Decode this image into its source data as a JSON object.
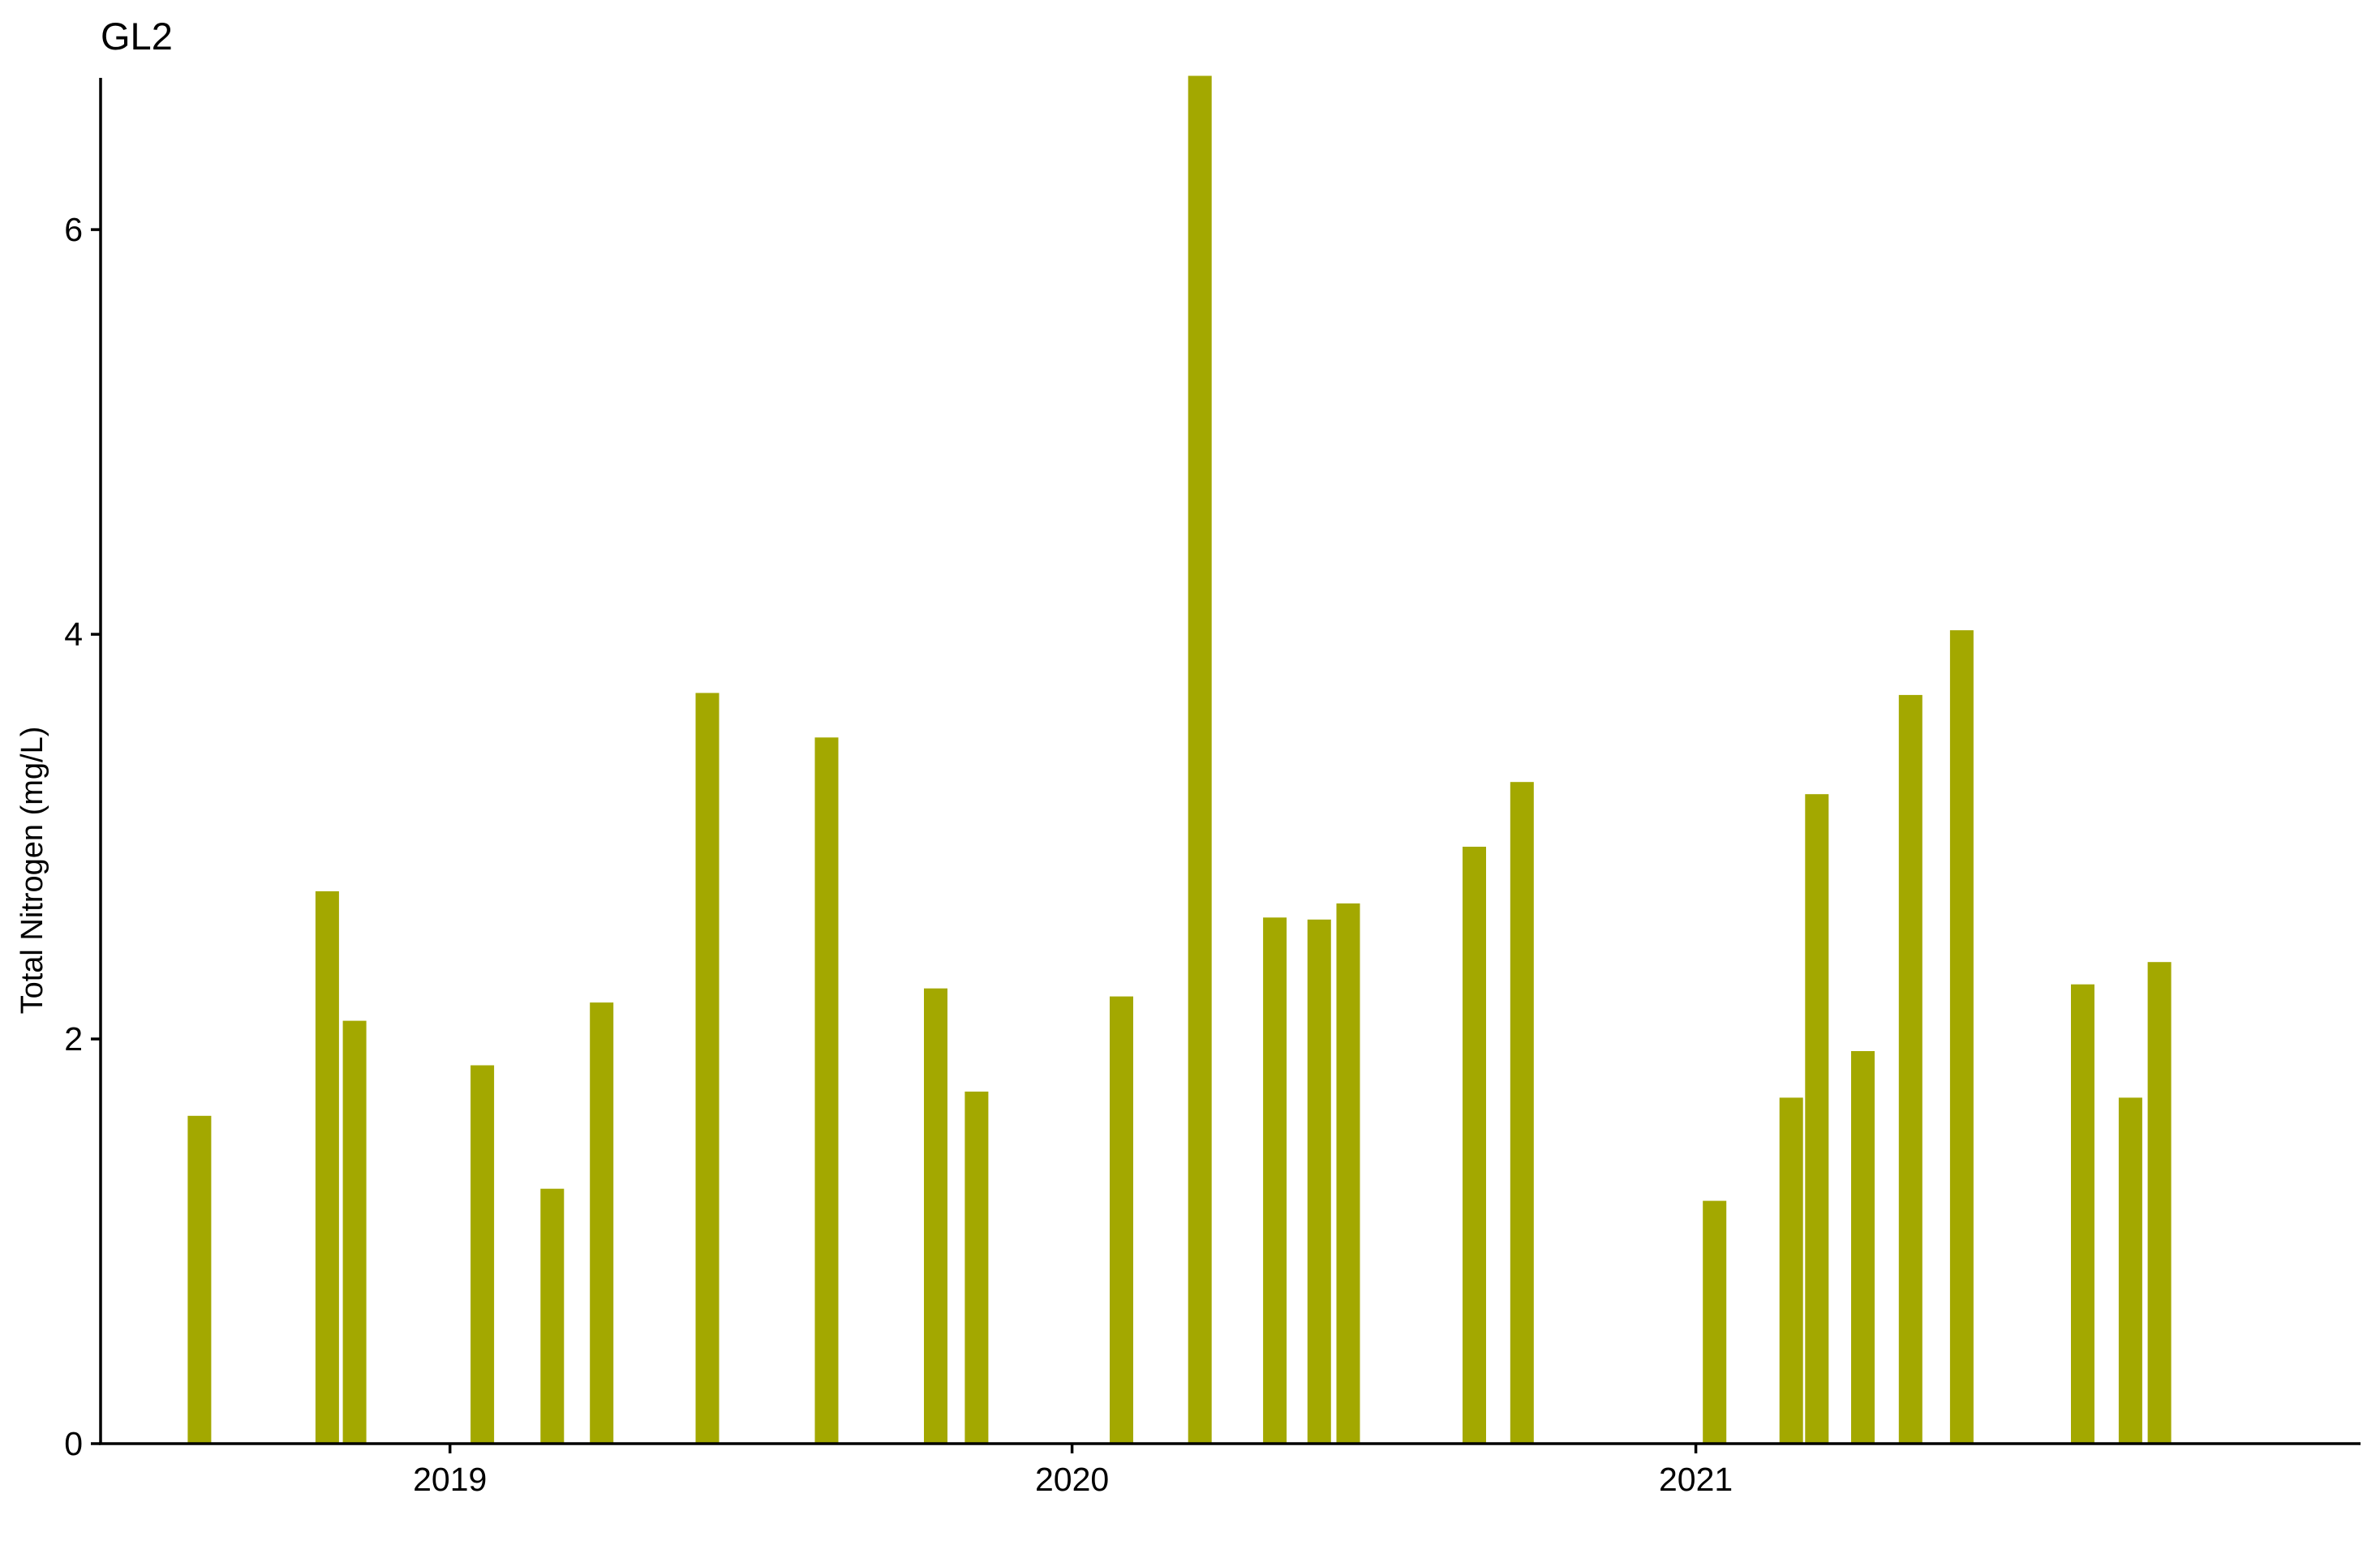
{
  "chart_data": {
    "type": "bar",
    "title": "GL2",
    "xlabel": "",
    "ylabel": "Total Nitrogen (mg/L)",
    "ylim": [
      0,
      6.75
    ],
    "y_ticks": [
      0,
      2,
      4,
      6
    ],
    "x_axis": {
      "type": "date",
      "range": [
        "2018-06-10",
        "2022-01-26"
      ],
      "ticks": [
        {
          "date": "2019-01-01",
          "label": "2019"
        },
        {
          "date": "2020-01-01",
          "label": "2020"
        },
        {
          "date": "2021-01-01",
          "label": "2021"
        }
      ]
    },
    "bar_color": "#A3A800",
    "grid": false,
    "legend": "none",
    "series": [
      {
        "x": [
          "2018-08-07",
          "2018-10-21",
          "2018-11-06",
          "2019-01-20",
          "2019-03-02",
          "2019-03-31",
          "2019-06-01",
          "2019-08-10",
          "2019-10-13",
          "2019-11-06",
          "2020-01-30",
          "2020-03-16",
          "2020-04-29",
          "2020-05-25",
          "2020-06-11",
          "2020-08-24",
          "2020-09-21",
          "2021-01-12",
          "2021-02-26",
          "2021-03-13",
          "2021-04-09",
          "2021-05-07",
          "2021-06-06",
          "2021-08-16",
          "2021-09-13",
          "2021-09-30"
        ],
        "values": [
          1.62,
          2.73,
          2.09,
          1.87,
          1.26,
          2.18,
          3.71,
          3.49,
          2.25,
          1.74,
          2.21,
          6.76,
          2.6,
          2.59,
          2.67,
          2.95,
          3.27,
          1.2,
          1.71,
          3.21,
          1.94,
          3.7,
          4.02,
          2.27,
          1.71,
          2.38
        ]
      }
    ]
  }
}
